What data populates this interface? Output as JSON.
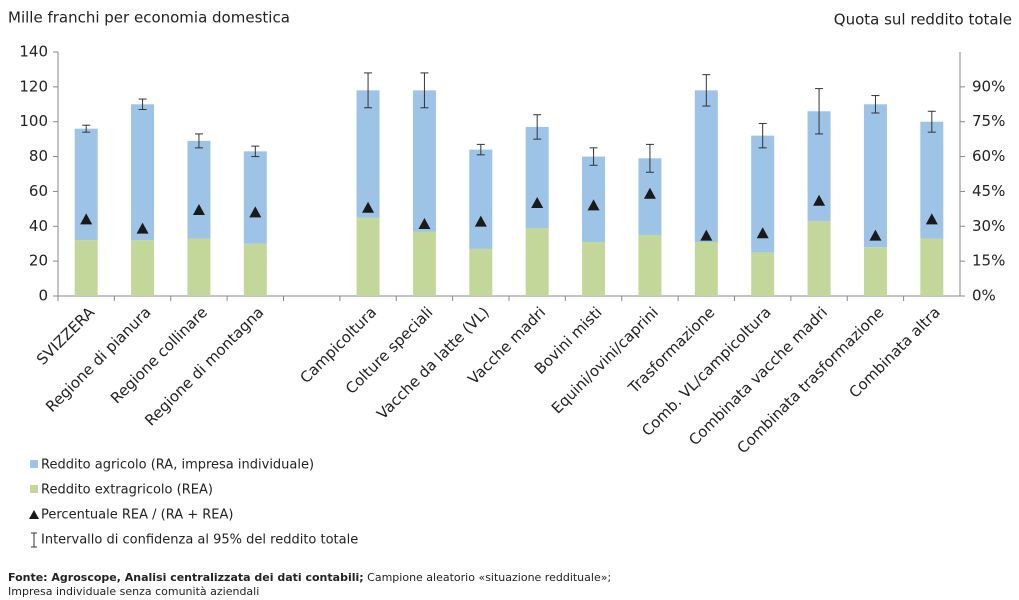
{
  "chart_data": {
    "type": "bar",
    "stacked": true,
    "y_label": "Mille franchi per economia domestica",
    "y2_label": "Quota sul reddito totale",
    "categories": [
      "SVIZZERA",
      "Regione di pianura",
      "Regione collinare",
      "Regione di montagna",
      null,
      "Campicoltura",
      "Colture speciali",
      "Vacche da latte (VL)",
      "Vacche madri",
      "Bovini misti",
      "Equini/ovini/caprini",
      "Trasformazione",
      "Comb. VL/campicoltura",
      "Combinata vacche madri",
      "Combinata trasformazione",
      "Combinata altra"
    ],
    "series": [
      {
        "name": "Reddito agricolo (RA, impresa individuale)",
        "color": "#9dc3e6",
        "values": [
          64,
          78,
          56,
          53,
          null,
          73,
          81,
          57,
          58,
          49,
          44,
          87,
          67,
          63,
          82,
          67
        ]
      },
      {
        "name": "Reddito extragricolo (REA)",
        "color": "#c4d79b",
        "values": [
          32,
          32,
          33,
          30,
          null,
          45,
          37,
          27,
          39,
          31,
          35,
          31,
          25,
          43,
          28,
          33
        ]
      },
      {
        "name": "Percentuale REA / (RA + REA)",
        "color": "#1a1a1a",
        "axis": "y2",
        "values": [
          33,
          29,
          37,
          36,
          null,
          38,
          31,
          32,
          40,
          39,
          44,
          26,
          27,
          41,
          26,
          33
        ]
      }
    ],
    "error_bars": {
      "name": "Intervallo di confidenza al 95% del reddito totale",
      "color": "#333333",
      "values": [
        2,
        3,
        4,
        3,
        null,
        10,
        10,
        3,
        7,
        5,
        8,
        9,
        7,
        13,
        5,
        6
      ]
    },
    "ylim": [
      0,
      140
    ],
    "yticks": [
      0,
      20,
      40,
      60,
      80,
      100,
      120,
      140
    ],
    "y2lim": [
      0,
      105
    ],
    "y2ticks": [
      {
        "value": 0,
        "label": "0%"
      },
      {
        "value": 15,
        "label": "15%"
      },
      {
        "value": 30,
        "label": "30%"
      },
      {
        "value": 45,
        "label": "45%"
      },
      {
        "value": 60,
        "label": "60%"
      },
      {
        "value": 75,
        "label": "75%"
      },
      {
        "value": 90,
        "label": "90%"
      }
    ],
    "grid": false,
    "source_bold": "Fonte: Agroscope, Analisi centralizzata dei dati contabili;",
    "source": " Campione aleatorio «situazione reddituale»;",
    "source_line2": "Impresa individuale senza comunità aziendali"
  }
}
